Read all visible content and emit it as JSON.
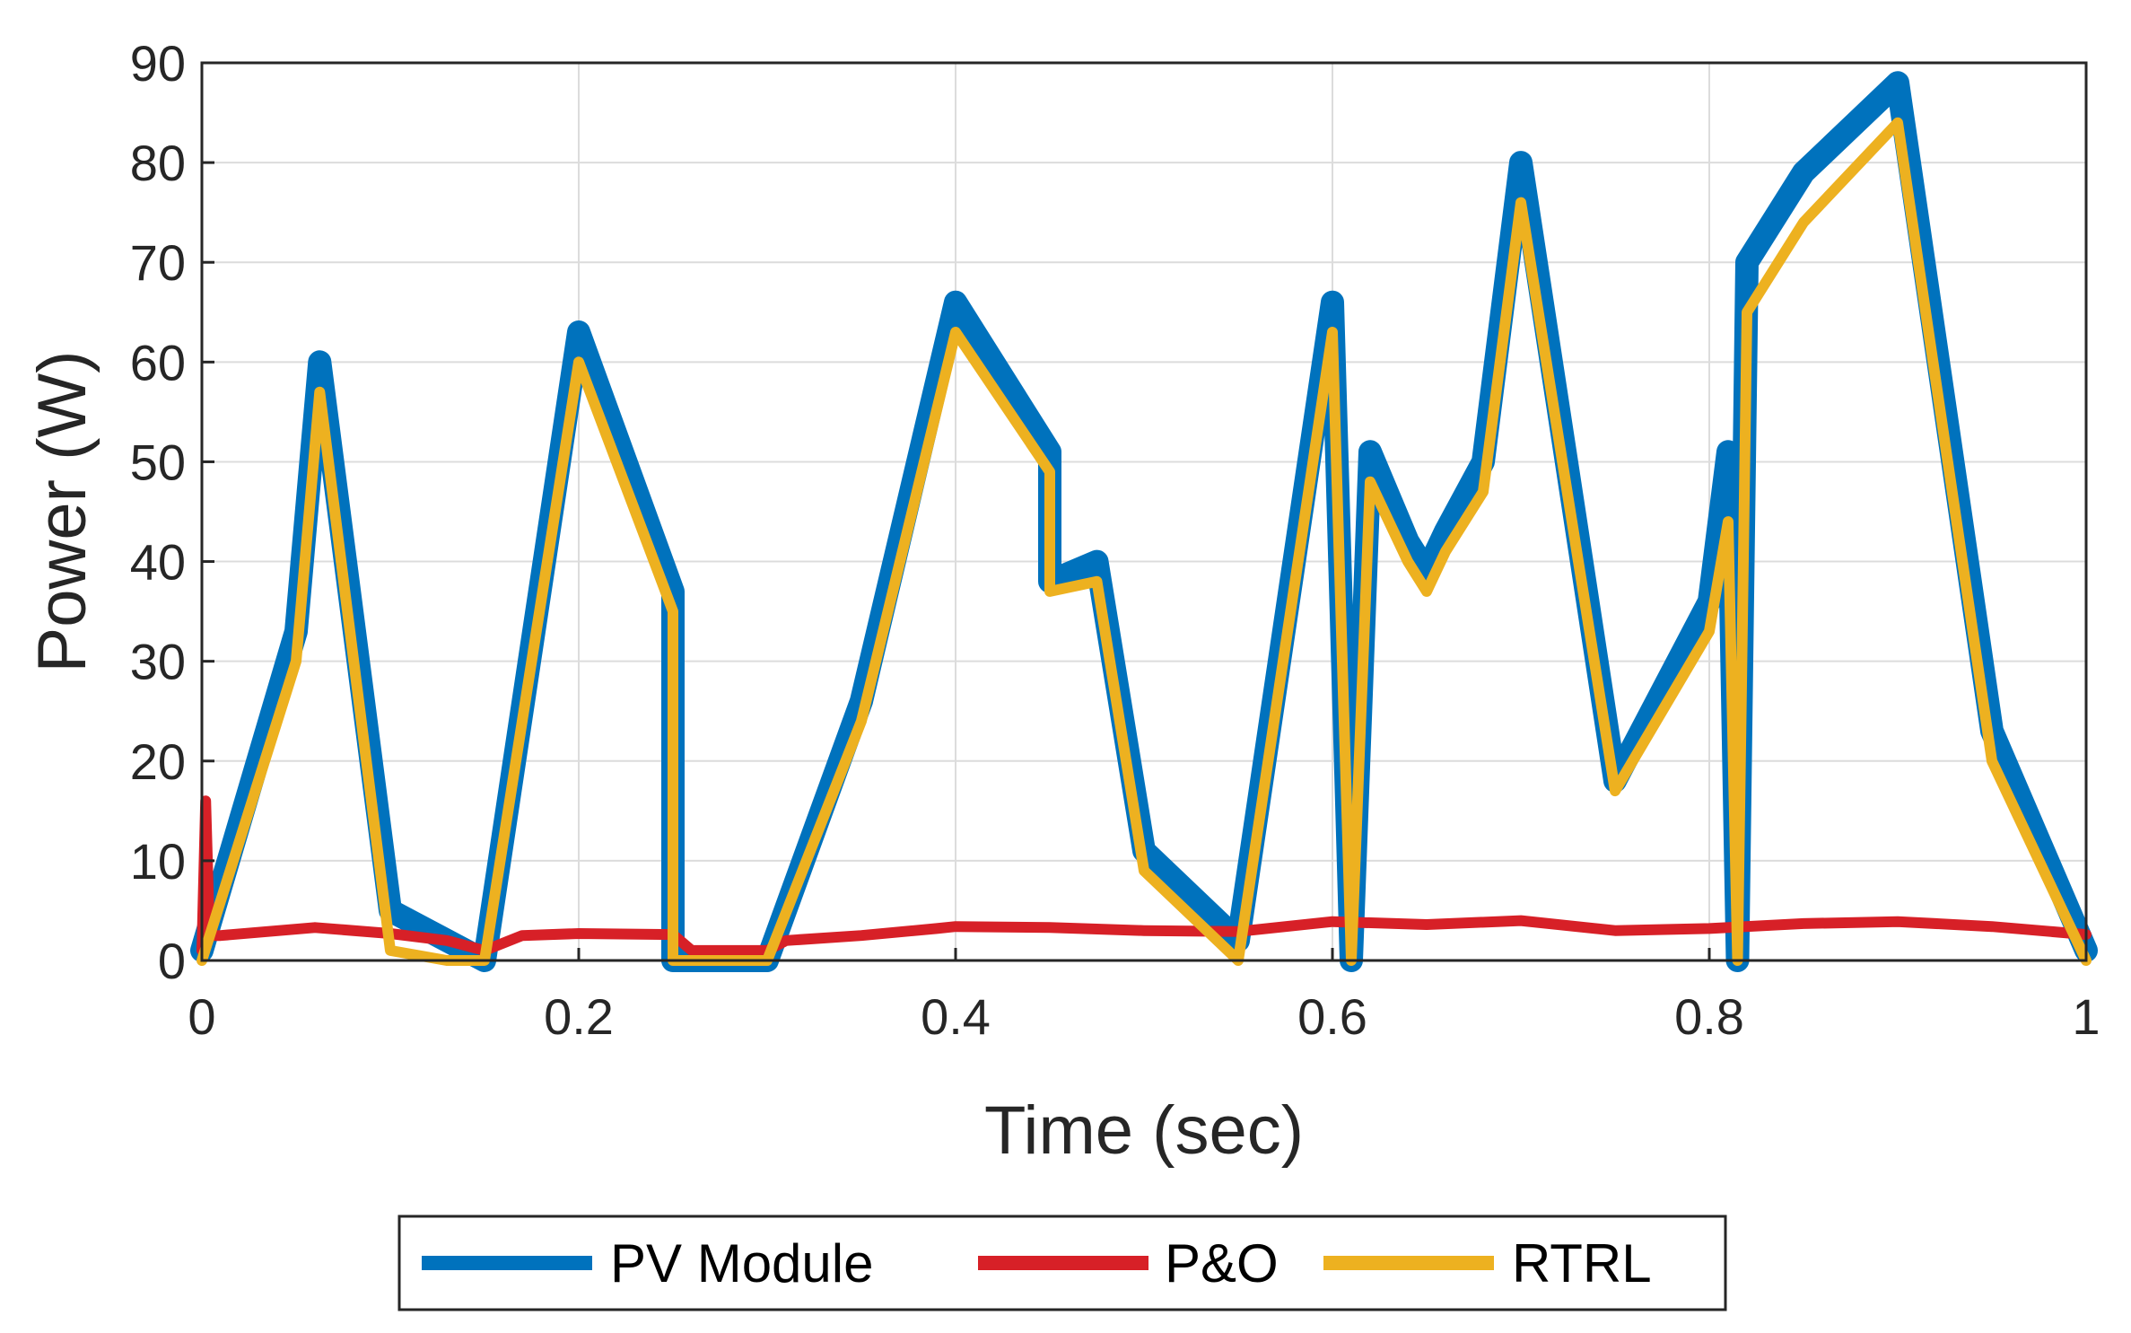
{
  "chart_data": {
    "type": "line",
    "title": "",
    "xlabel": "Time (sec)",
    "ylabel": "Power (W)",
    "xlim": [
      0,
      1
    ],
    "ylim": [
      0,
      90
    ],
    "grid": true,
    "legend_position": "bottom-outside",
    "x_ticks": [
      "0",
      "0.2",
      "0.4",
      "0.6",
      "0.8",
      "1"
    ],
    "y_ticks": [
      "0",
      "10",
      "20",
      "30",
      "40",
      "50",
      "60",
      "70",
      "80",
      "90"
    ],
    "series": [
      {
        "name": "PV Module",
        "color": "#0072BD",
        "x": [
          0,
          0.05,
          0.0625,
          0.1,
          0.15,
          0.2,
          0.25,
          0.25,
          0.3,
          0.35,
          0.4,
          0.45,
          0.45,
          0.475,
          0.5,
          0.55,
          0.6,
          0.61,
          0.62,
          0.64,
          0.65,
          0.66,
          0.68,
          0.7,
          0.75,
          0.8,
          0.81,
          0.815,
          0.82,
          0.85,
          0.9,
          0.95,
          1.0
        ],
        "y": [
          1,
          33,
          60,
          5,
          0,
          63,
          37,
          0,
          0,
          26,
          66,
          51,
          38,
          40,
          11,
          2,
          66,
          0,
          51,
          42,
          39,
          43,
          50,
          80,
          18,
          36,
          51,
          0,
          70,
          79,
          88,
          23,
          1
        ]
      },
      {
        "name": "P&O",
        "color": "#D72027",
        "x": [
          0,
          0.002,
          0.004,
          0.006,
          0.01,
          0.06,
          0.1,
          0.13,
          0.15,
          0.17,
          0.2,
          0.25,
          0.26,
          0.3,
          0.31,
          0.35,
          0.39,
          0.4,
          0.45,
          0.5,
          0.55,
          0.6,
          0.65,
          0.7,
          0.75,
          0.8,
          0.85,
          0.9,
          0.95,
          1.0
        ],
        "y": [
          1,
          16,
          3,
          2.5,
          2.5,
          3.3,
          2.7,
          2.0,
          1.0,
          2.5,
          2.7,
          2.6,
          1.0,
          1.0,
          2.0,
          2.5,
          3.2,
          3.4,
          3.3,
          3.0,
          2.9,
          3.9,
          3.6,
          4.0,
          3.0,
          3.2,
          3.7,
          3.9,
          3.4,
          2.6
        ]
      },
      {
        "name": "RTRL",
        "color": "#EDB120",
        "x": [
          0,
          0.05,
          0.0625,
          0.1,
          0.13,
          0.15,
          0.2,
          0.25,
          0.25,
          0.3,
          0.35,
          0.4,
          0.45,
          0.45,
          0.475,
          0.5,
          0.55,
          0.6,
          0.61,
          0.62,
          0.64,
          0.65,
          0.66,
          0.68,
          0.7,
          0.75,
          0.8,
          0.81,
          0.815,
          0.82,
          0.85,
          0.9,
          0.95,
          1.0
        ],
        "y": [
          0,
          30,
          57,
          1,
          0,
          0,
          60,
          35,
          0,
          0,
          24,
          63,
          49,
          37,
          38,
          9,
          0,
          63,
          0,
          48,
          40,
          37,
          41,
          47,
          76,
          17,
          33,
          44,
          0,
          65,
          74,
          84,
          20,
          0
        ]
      }
    ]
  }
}
